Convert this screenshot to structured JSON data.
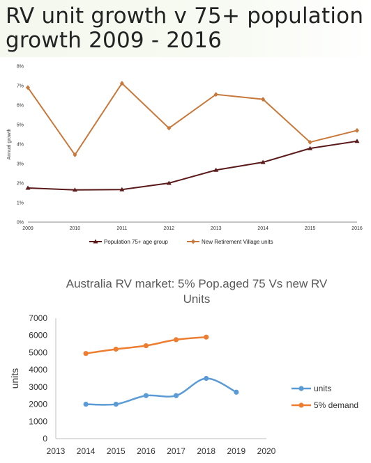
{
  "page_title": "RV unit growth v 75+ population growth 2009 - 2016",
  "chart_data": [
    {
      "type": "line",
      "title": "",
      "xlabel": "",
      "ylabel": "Annual growth",
      "x": [
        "2009",
        "2010",
        "2011",
        "2012",
        "2013",
        "2014",
        "2015",
        "2016"
      ],
      "yticks": [
        "0%",
        "1%",
        "2%",
        "3%",
        "4%",
        "5%",
        "6%",
        "7%",
        "8%"
      ],
      "ylim": [
        0,
        8
      ],
      "grid": false,
      "legend_position": "bottom",
      "series": [
        {
          "name": "Population 75+ age group",
          "color": "#5a1a1a",
          "marker": "triangle",
          "values": [
            1.75,
            1.65,
            1.67,
            2.0,
            2.67,
            3.07,
            3.78,
            4.15
          ]
        },
        {
          "name": "New Retirement Village units",
          "color": "#c8783a",
          "marker": "diamond",
          "values": [
            6.9,
            3.45,
            7.12,
            4.82,
            6.55,
            6.3,
            4.1,
            4.7
          ]
        }
      ]
    },
    {
      "type": "line",
      "title": "Australia RV market: 5% Pop.aged 75 Vs new RV Units",
      "xlabel": "",
      "ylabel": "units",
      "xticks": [
        "2013",
        "2014",
        "2015",
        "2016",
        "2017",
        "2018",
        "2019",
        "2020"
      ],
      "xlim": [
        2013,
        2020
      ],
      "yticks": [
        "0",
        "1000",
        "2000",
        "3000",
        "4000",
        "5000",
        "6000",
        "7000"
      ],
      "ylim": [
        0,
        7000
      ],
      "grid": false,
      "legend_position": "right",
      "series": [
        {
          "name": "units",
          "color": "#5b9bd5",
          "x": [
            2014,
            2015,
            2016,
            2017,
            2018,
            2019
          ],
          "values": [
            2000,
            2000,
            2500,
            2500,
            3500,
            2700
          ]
        },
        {
          "name": "5% demand",
          "color": "#ed7d31",
          "x": [
            2014,
            2015,
            2016,
            2017,
            2018
          ],
          "values": [
            4950,
            5200,
            5400,
            5750,
            5900
          ]
        }
      ]
    }
  ]
}
